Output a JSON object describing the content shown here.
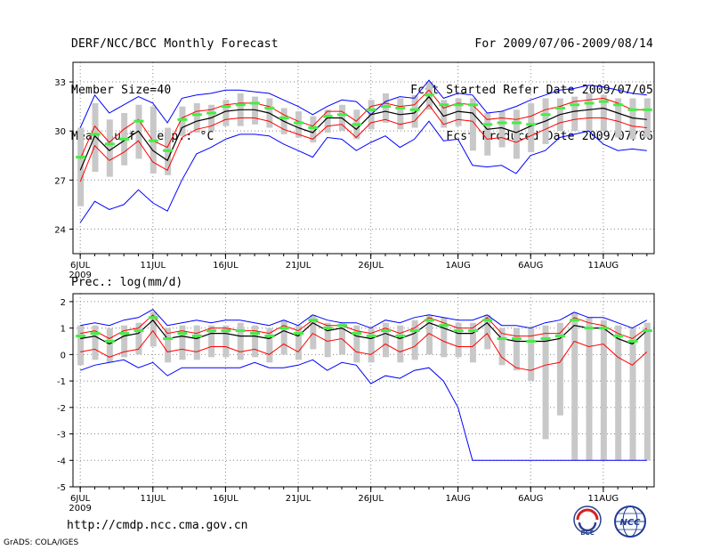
{
  "header": {
    "title": "DERF/NCC/BCC Monthly Forecast",
    "member": "Member Size=40",
    "variable": "Mean Surf. Temp.: °C",
    "period": "For 2009/07/06-2009/08/14",
    "started": "Fcst Started Refer Date 2009/07/05",
    "produced": "Fcst Produced Date 2009/07/06"
  },
  "footer": {
    "url": "http://cmdp.ncc.cma.gov.cn",
    "credit": "GrADS: COLA/IGES",
    "logo_left_text": "BCC",
    "logo_right_text": "NCC"
  },
  "colors": {
    "max_line": "#0000ff",
    "min_line": "#0000ff",
    "mean_line": "#000000",
    "band_line": "#ff0000",
    "box": "#c8c8c8",
    "marker": "#44ee44",
    "grid": "#888888"
  },
  "chart_data": [
    {
      "type": "line",
      "title": "Mean Surf. Temp.: °C",
      "panel_label": "",
      "x_tick_labels": [
        "6JUL",
        "11JUL",
        "16JUL",
        "21JUL",
        "26JUL",
        "1AUG",
        "6AUG",
        "11AUG"
      ],
      "x_tick_days": [
        1,
        6,
        11,
        16,
        21,
        27,
        32,
        37
      ],
      "x_sub_label": "2009",
      "xlim": [
        0.5,
        40.5
      ],
      "ylim": [
        22.5,
        34.2
      ],
      "yticks": [
        24,
        27,
        30,
        33
      ],
      "days": [
        1,
        2,
        3,
        4,
        5,
        6,
        7,
        8,
        9,
        10,
        11,
        12,
        13,
        14,
        15,
        16,
        17,
        18,
        19,
        20,
        21,
        22,
        23,
        24,
        25,
        26,
        27,
        28,
        29,
        30,
        31,
        32,
        33,
        34,
        35,
        36,
        37,
        38,
        39,
        40
      ],
      "max": [
        30.2,
        32.2,
        31.1,
        31.6,
        32.1,
        31.7,
        30.5,
        32.0,
        32.2,
        32.3,
        32.5,
        32.5,
        32.4,
        32.3,
        31.9,
        31.5,
        31.0,
        31.5,
        31.9,
        31.8,
        31.0,
        31.8,
        32.1,
        32.0,
        33.1,
        32.0,
        32.3,
        32.2,
        31.1,
        31.2,
        31.5,
        31.9,
        32.2,
        32.5,
        32.6,
        32.8,
        32.7,
        32.5,
        32.3,
        32.2
      ],
      "min": [
        24.4,
        25.7,
        25.2,
        25.5,
        26.4,
        25.6,
        25.1,
        27.0,
        28.6,
        29.0,
        29.5,
        29.8,
        29.8,
        29.7,
        29.2,
        28.8,
        28.4,
        29.6,
        29.5,
        28.8,
        29.3,
        29.7,
        29.0,
        29.5,
        30.6,
        29.4,
        29.5,
        27.9,
        27.8,
        27.9,
        27.4,
        28.5,
        28.8,
        29.6,
        29.8,
        30.0,
        29.2,
        28.8,
        28.9,
        28.8
      ],
      "upper": [
        28.3,
        30.3,
        29.3,
        30.1,
        30.7,
        29.4,
        29.0,
        30.8,
        31.2,
        31.3,
        31.6,
        31.7,
        31.7,
        31.5,
        31.0,
        30.6,
        30.3,
        31.2,
        31.2,
        30.6,
        31.5,
        31.7,
        31.5,
        31.6,
        32.5,
        31.4,
        31.7,
        31.6,
        30.7,
        30.8,
        30.7,
        30.9,
        31.3,
        31.5,
        31.8,
        31.9,
        32.0,
        31.7,
        31.3,
        31.3
      ],
      "mean": [
        27.6,
        29.7,
        28.8,
        29.4,
        30.0,
        28.8,
        28.2,
        30.2,
        30.6,
        30.8,
        31.2,
        31.3,
        31.3,
        31.1,
        30.6,
        30.2,
        29.9,
        30.8,
        30.8,
        30.1,
        31.0,
        31.2,
        31.0,
        31.1,
        32.1,
        30.9,
        31.2,
        31.1,
        30.1,
        30.2,
        29.9,
        30.3,
        30.6,
        31.0,
        31.2,
        31.3,
        31.4,
        31.1,
        30.8,
        30.7
      ],
      "lower": [
        26.9,
        29.1,
        28.2,
        28.7,
        29.4,
        28.1,
        27.6,
        29.6,
        30.1,
        30.3,
        30.7,
        30.8,
        30.8,
        30.6,
        30.1,
        29.8,
        29.5,
        30.3,
        30.4,
        29.6,
        30.5,
        30.7,
        30.4,
        30.6,
        31.6,
        30.4,
        30.7,
        30.6,
        29.5,
        29.6,
        29.3,
        29.7,
        30.1,
        30.5,
        30.7,
        30.8,
        30.8,
        30.6,
        30.3,
        30.2
      ],
      "box_top": [
        30.2,
        31.7,
        30.7,
        31.1,
        31.6,
        31.5,
        30.2,
        31.5,
        31.7,
        31.6,
        31.9,
        32.3,
        32.1,
        32.0,
        31.4,
        31.2,
        30.9,
        31.3,
        31.6,
        31.3,
        31.9,
        32.3,
        32.0,
        32.2,
        33.0,
        31.9,
        32.0,
        32.0,
        31.1,
        31.2,
        31.3,
        31.7,
        32.0,
        32.0,
        32.1,
        32.3,
        32.2,
        32.0,
        32.0,
        32.0
      ],
      "box_bottom": [
        25.4,
        27.5,
        27.2,
        27.9,
        28.3,
        27.4,
        27.3,
        29.7,
        29.9,
        30.0,
        30.3,
        30.3,
        30.4,
        30.2,
        29.8,
        29.6,
        29.3,
        29.9,
        30.0,
        29.5,
        30.1,
        30.5,
        30.1,
        30.2,
        31.3,
        30.2,
        30.3,
        28.8,
        28.5,
        29.0,
        28.3,
        28.7,
        29.2,
        30.0,
        30.0,
        30.0,
        30.0,
        29.6,
        29.5,
        29.6
      ],
      "marker": [
        28.4,
        29.8,
        29.2,
        29.5,
        30.6,
        29.4,
        28.8,
        30.7,
        31.0,
        31.1,
        31.5,
        31.6,
        31.7,
        31.4,
        30.8,
        30.5,
        30.2,
        30.9,
        31.0,
        30.4,
        31.3,
        31.5,
        31.4,
        31.3,
        32.2,
        31.6,
        31.6,
        31.6,
        30.4,
        30.5,
        30.5,
        30.4,
        31.0,
        31.4,
        31.6,
        31.7,
        31.8,
        31.6,
        31.3,
        31.3
      ]
    },
    {
      "type": "line",
      "title": "",
      "panel_label": "Prec.: log(mm/d)",
      "x_tick_labels": [
        "6JUL",
        "11JUL",
        "16JUL",
        "21JUL",
        "26JUL",
        "1AUG",
        "6AUG",
        "11AUG"
      ],
      "x_tick_days": [
        1,
        6,
        11,
        16,
        21,
        27,
        32,
        37
      ],
      "x_sub_label": "2009",
      "xlim": [
        0.5,
        40.5
      ],
      "ylim": [
        -5,
        2.3
      ],
      "yticks": [
        -5,
        -4,
        -3,
        -2,
        -1,
        0,
        1,
        2
      ],
      "days": [
        1,
        2,
        3,
        4,
        5,
        6,
        7,
        8,
        9,
        10,
        11,
        12,
        13,
        14,
        15,
        16,
        17,
        18,
        19,
        20,
        21,
        22,
        23,
        24,
        25,
        26,
        27,
        28,
        29,
        30,
        31,
        32,
        33,
        34,
        35,
        36,
        37,
        38,
        39,
        40
      ],
      "max": [
        1.1,
        1.2,
        1.1,
        1.3,
        1.4,
        1.7,
        1.1,
        1.2,
        1.3,
        1.2,
        1.3,
        1.3,
        1.2,
        1.1,
        1.3,
        1.1,
        1.5,
        1.3,
        1.2,
        1.2,
        1.0,
        1.3,
        1.2,
        1.4,
        1.5,
        1.4,
        1.3,
        1.3,
        1.5,
        1.1,
        1.1,
        1.0,
        1.2,
        1.3,
        1.6,
        1.4,
        1.4,
        1.2,
        1.0,
        1.3
      ],
      "min": [
        -0.6,
        -0.4,
        -0.3,
        -0.2,
        -0.5,
        -0.3,
        -0.8,
        -0.5,
        -0.5,
        -0.5,
        -0.5,
        -0.5,
        -0.3,
        -0.5,
        -0.5,
        -0.4,
        -0.2,
        -0.6,
        -0.3,
        -0.4,
        -1.1,
        -0.8,
        -0.9,
        -0.6,
        -0.5,
        -1.0,
        -2.0,
        -4.0,
        -4.0,
        -4.0,
        -4.0,
        -4.0,
        -4.0,
        -4.0,
        -4.0,
        -4.0,
        -4.0,
        -4.0,
        -4.0,
        -4.0
      ],
      "upper": [
        0.8,
        0.9,
        0.6,
        0.9,
        1.0,
        1.5,
        0.8,
        0.9,
        0.8,
        1.0,
        1.0,
        0.9,
        0.9,
        0.8,
        1.1,
        0.9,
        1.3,
        1.1,
        1.1,
        0.9,
        0.8,
        1.0,
        0.8,
        1.0,
        1.4,
        1.2,
        1.0,
        1.0,
        1.4,
        0.8,
        0.7,
        0.7,
        0.8,
        0.8,
        1.4,
        1.2,
        1.1,
        0.8,
        0.6,
        1.0
      ],
      "mean": [
        0.6,
        0.7,
        0.4,
        0.7,
        0.8,
        1.3,
        0.6,
        0.7,
        0.6,
        0.8,
        0.8,
        0.7,
        0.7,
        0.6,
        0.9,
        0.7,
        1.2,
        0.9,
        1.0,
        0.7,
        0.6,
        0.8,
        0.6,
        0.8,
        1.2,
        1.0,
        0.8,
        0.8,
        1.2,
        0.6,
        0.5,
        0.5,
        0.5,
        0.6,
        1.1,
        1.0,
        1.0,
        0.6,
        0.4,
        0.9
      ],
      "lower": [
        0.1,
        0.2,
        -0.1,
        0.1,
        0.2,
        0.9,
        0.1,
        0.2,
        0.1,
        0.3,
        0.3,
        0.1,
        0.2,
        0.0,
        0.4,
        0.1,
        0.8,
        0.5,
        0.6,
        0.1,
        0.0,
        0.4,
        0.1,
        0.3,
        0.8,
        0.5,
        0.3,
        0.3,
        0.8,
        -0.1,
        -0.5,
        -0.6,
        -0.4,
        -0.3,
        0.5,
        0.3,
        0.4,
        -0.1,
        -0.4,
        0.1
      ],
      "box_top": [
        1.1,
        1.1,
        1.0,
        1.1,
        1.2,
        1.6,
        1.0,
        1.1,
        1.1,
        1.1,
        1.1,
        1.2,
        1.1,
        1.0,
        1.3,
        1.1,
        1.5,
        1.2,
        1.2,
        1.1,
        1.0,
        1.2,
        1.1,
        1.3,
        1.5,
        1.4,
        1.2,
        1.2,
        1.5,
        1.0,
        1.0,
        1.0,
        1.1,
        1.2,
        1.6,
        1.4,
        1.3,
        1.1,
        1.0,
        1.2
      ],
      "box_bottom": [
        -0.4,
        -0.2,
        -0.3,
        -0.1,
        0.0,
        0.3,
        -0.3,
        -0.2,
        -0.2,
        -0.1,
        -0.1,
        -0.2,
        -0.1,
        -0.3,
        0.0,
        -0.2,
        0.2,
        -0.1,
        0.0,
        -0.3,
        -0.3,
        -0.1,
        -0.3,
        -0.2,
        0.0,
        -0.1,
        -0.1,
        -0.3,
        0.2,
        -0.4,
        -0.6,
        -1.0,
        -3.2,
        -2.3,
        -4.0,
        -4.0,
        -4.0,
        -4.0,
        -4.0,
        -4.0
      ],
      "marker": [
        0.7,
        0.8,
        0.5,
        0.8,
        0.9,
        1.4,
        0.6,
        0.8,
        0.7,
        0.9,
        0.9,
        0.9,
        0.8,
        0.7,
        1.0,
        0.8,
        1.3,
        1.0,
        1.1,
        0.8,
        0.7,
        0.9,
        0.7,
        0.9,
        1.3,
        1.1,
        0.9,
        0.9,
        1.3,
        0.6,
        0.6,
        0.5,
        0.6,
        0.7,
        1.3,
        1.0,
        1.0,
        0.7,
        0.5,
        0.9
      ]
    }
  ]
}
